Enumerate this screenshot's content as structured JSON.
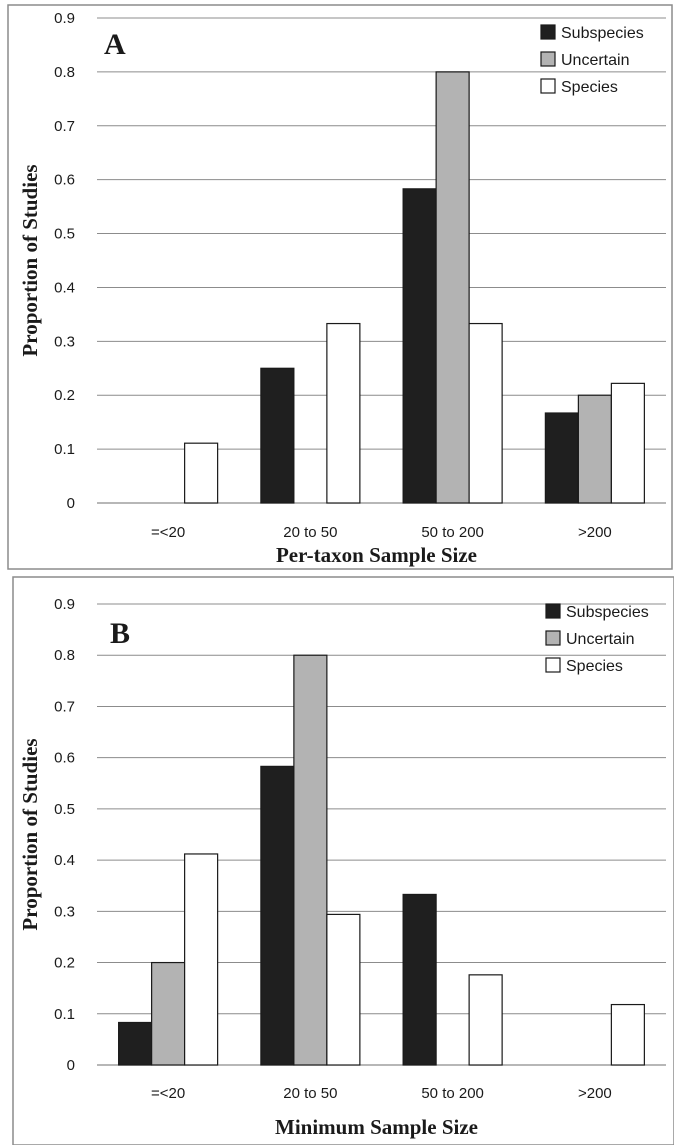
{
  "colors": {
    "Subspecies": "#1f1f1f",
    "Uncertain": "#b3b3b3",
    "Species": "#ffffff",
    "bar_stroke": "#1a1a1a",
    "grid": "#8c8c8c",
    "frame": "#8c8c8c"
  },
  "chart_data": [
    {
      "type": "bar",
      "panel_label": "A",
      "categories": [
        "=<20",
        "20 to 50",
        "50 to 200",
        ">200"
      ],
      "series": [
        {
          "name": "Subspecies",
          "values": [
            0,
            0.25,
            0.583,
            0.167
          ]
        },
        {
          "name": "Uncertain",
          "values": [
            0,
            0,
            0.8,
            0.2
          ]
        },
        {
          "name": "Species",
          "values": [
            0.111,
            0.333,
            0.333,
            0.222
          ]
        }
      ],
      "xlabel": "Per-taxon Sample Size",
      "ylabel": "Proportion of Studies",
      "ylim": [
        0,
        0.9
      ],
      "yticks": [
        "0",
        "0.1",
        "0.2",
        "0.3",
        "0.4",
        "0.5",
        "0.6",
        "0.7",
        "0.8",
        "0.9"
      ],
      "grid": true,
      "legend": "top-right"
    },
    {
      "type": "bar",
      "panel_label": "B",
      "categories": [
        "=<20",
        "20 to 50",
        "50 to 200",
        ">200"
      ],
      "series": [
        {
          "name": "Subspecies",
          "values": [
            0.083,
            0.583,
            0.333,
            0
          ]
        },
        {
          "name": "Uncertain",
          "values": [
            0.2,
            0.8,
            0,
            0
          ]
        },
        {
          "name": "Species",
          "values": [
            0.412,
            0.294,
            0.176,
            0.118
          ]
        }
      ],
      "xlabel": "Minimum Sample Size",
      "ylabel": "Proportion of Studies",
      "ylim": [
        0,
        0.9
      ],
      "yticks": [
        "0",
        "0.1",
        "0.2",
        "0.3",
        "0.4",
        "0.5",
        "0.6",
        "0.7",
        "0.8",
        "0.9"
      ],
      "grid": true,
      "legend": "top-right"
    }
  ]
}
